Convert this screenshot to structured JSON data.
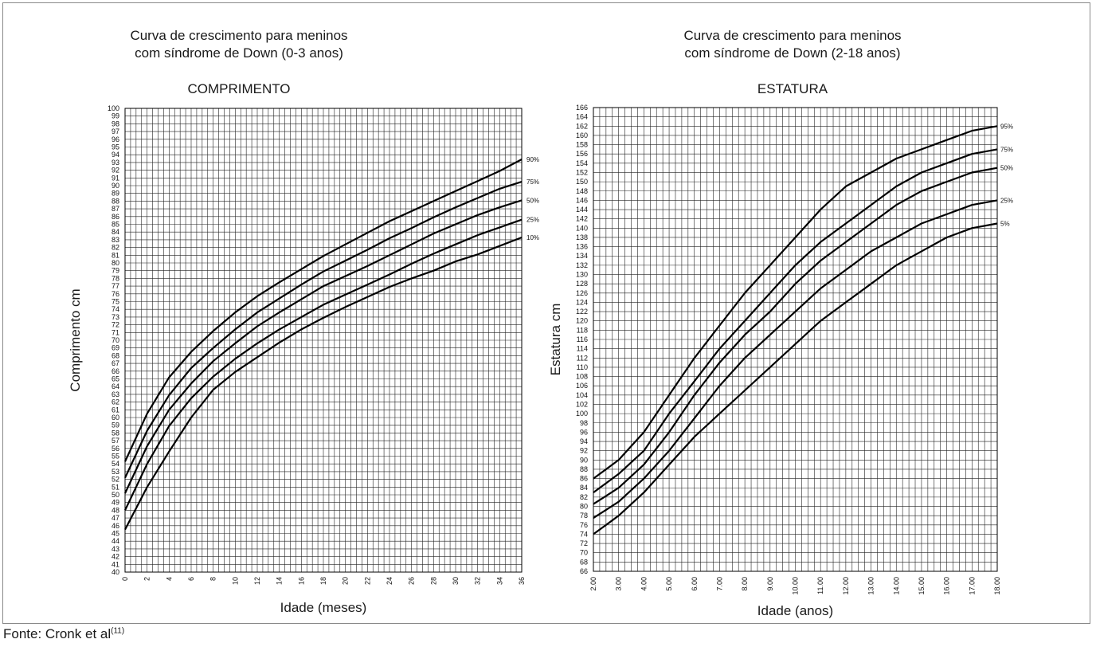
{
  "source": {
    "text": "Fonte: Cronk et al",
    "ref": "(11)"
  },
  "chart_data": [
    {
      "type": "line",
      "title": "Curva de crescimento para meninos\ncom síndrome de Down (0-3 anos)",
      "subtitle": "COMPRIMENTO",
      "xlabel": "Idade (meses)",
      "ylabel": "Comprimento cm",
      "xlim": [
        0,
        36
      ],
      "ylim": [
        40,
        100
      ],
      "grid": true,
      "x_ticks": [
        "0",
        "2",
        "4",
        "6",
        "8",
        "10",
        "12",
        "14",
        "16",
        "18",
        "20",
        "22",
        "24",
        "26",
        "28",
        "30",
        "32",
        "34",
        "36"
      ],
      "x": [
        0,
        2,
        4,
        6,
        8,
        10,
        12,
        14,
        16,
        18,
        20,
        22,
        24,
        26,
        28,
        30,
        32,
        34,
        36
      ],
      "series": [
        {
          "name": "90%",
          "values": [
            54.3,
            60.5,
            65.2,
            68.5,
            71.2,
            73.6,
            75.7,
            77.5,
            79.2,
            80.9,
            82.4,
            83.9,
            85.4,
            86.7,
            88.0,
            89.3,
            90.6,
            91.9,
            93.4
          ]
        },
        {
          "name": "75%",
          "values": [
            52.2,
            58.3,
            62.9,
            66.4,
            69.0,
            71.4,
            73.6,
            75.4,
            77.2,
            78.9,
            80.3,
            81.7,
            83.2,
            84.5,
            85.9,
            87.2,
            88.4,
            89.6,
            90.5
          ]
        },
        {
          "name": "50%",
          "values": [
            50.2,
            56.3,
            61.0,
            64.4,
            67.3,
            69.6,
            71.8,
            73.6,
            75.3,
            77.0,
            78.3,
            79.6,
            81.0,
            82.4,
            83.8,
            85.0,
            86.2,
            87.2,
            88.1
          ]
        },
        {
          "name": "25%",
          "values": [
            48.0,
            54.0,
            58.9,
            62.5,
            65.3,
            67.6,
            69.6,
            71.4,
            73.0,
            74.6,
            75.9,
            77.2,
            78.5,
            79.9,
            81.2,
            82.4,
            83.6,
            84.6,
            85.6
          ]
        },
        {
          "name": "10%",
          "values": [
            45.5,
            51.0,
            55.6,
            60.0,
            63.6,
            65.9,
            67.8,
            69.7,
            71.4,
            72.9,
            74.3,
            75.6,
            76.9,
            78.0,
            79.0,
            80.2,
            81.1,
            82.2,
            83.3
          ]
        }
      ]
    },
    {
      "type": "line",
      "title": "Curva de crescimento para meninos\ncom síndrome de Down (2-18 anos)",
      "subtitle": "ESTATURA",
      "xlabel": "Idade (anos)",
      "ylabel": "Estatura cm",
      "xlim": [
        2,
        18
      ],
      "ylim": [
        66,
        166
      ],
      "grid": true,
      "x_ticks": [
        "2.00",
        "3.00",
        "4.00",
        "5.00",
        "6.00",
        "7.00",
        "8.00",
        "9.00",
        "10.00",
        "11.00",
        "12.00",
        "13.00",
        "14.00",
        "15.00",
        "16.00",
        "17.00",
        "18.00"
      ],
      "x": [
        2,
        3,
        4,
        5,
        6,
        7,
        8,
        9,
        10,
        11,
        12,
        13,
        14,
        15,
        16,
        17,
        18
      ],
      "series": [
        {
          "name": "95%",
          "values": [
            86,
            90,
            96,
            104,
            112,
            119,
            126,
            132,
            138,
            144,
            149,
            152,
            155,
            157,
            159,
            161,
            162
          ]
        },
        {
          "name": "75%",
          "values": [
            83,
            87,
            92,
            100,
            107,
            114,
            120,
            126,
            132,
            137,
            141,
            145,
            149,
            152,
            154,
            156,
            157
          ]
        },
        {
          "name": "50%",
          "values": [
            80.5,
            84,
            89,
            96,
            104,
            111,
            117,
            122,
            128,
            133,
            137,
            141,
            145,
            148,
            150,
            152,
            153
          ]
        },
        {
          "name": "25%",
          "values": [
            77.5,
            81,
            86,
            92,
            99,
            106,
            112,
            117,
            122,
            127,
            131,
            135,
            138,
            141,
            143,
            145,
            146
          ]
        },
        {
          "name": "5%",
          "values": [
            74,
            78,
            83,
            89,
            95,
            100,
            105,
            110,
            115,
            120,
            124,
            128,
            132,
            135,
            138,
            140,
            141
          ]
        }
      ]
    }
  ]
}
